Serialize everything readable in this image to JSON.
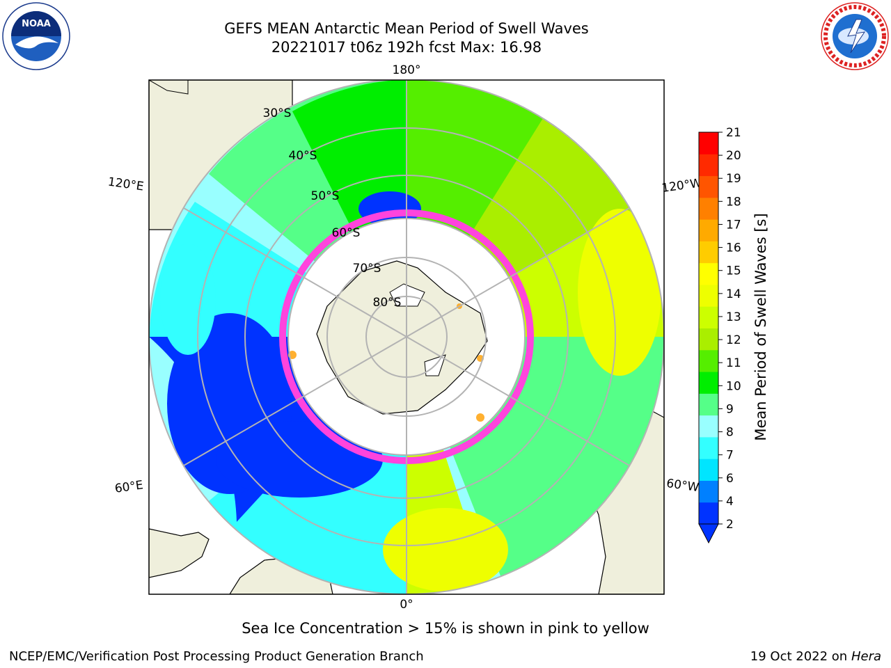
{
  "header": {
    "title_line1": "GEFS MEAN Antarctic Mean Period of Swell Waves",
    "title_line2": "20221017 t06z 192h fcst   Max: 16.98"
  },
  "logos": {
    "noaa": {
      "text": "NOAA"
    }
  },
  "map": {
    "projection": "south-polar-stereographic",
    "longitude_labels": [
      "180°",
      "120°E",
      "120°W",
      "60°E",
      "60°W",
      "0°"
    ],
    "latitude_labels": [
      "30°S",
      "40°S",
      "50°S",
      "60°S",
      "70°S",
      "80°S"
    ],
    "colors": {
      "land": "#efefdc",
      "ice_shelf": "#ffffff",
      "grid": "#b3b3b3",
      "sea_ice_edge": "#ff44dd",
      "sea_ice_inner": "#ffb030"
    },
    "summary": {
      "max_swell_period_s": 16.98
    }
  },
  "colorbar": {
    "label": "Mean Period of Swell Waves [s]",
    "ticks": [
      "2",
      "4",
      "6",
      "7",
      "8",
      "9",
      "10",
      "11",
      "12",
      "13",
      "14",
      "15",
      "16",
      "17",
      "18",
      "19",
      "20",
      "21"
    ],
    "colors": [
      "#0033ff",
      "#0080ff",
      "#00e5ff",
      "#33ffff",
      "#99ffff",
      "#55ff88",
      "#00ee00",
      "#55ee00",
      "#aaee00",
      "#ccff00",
      "#eeff00",
      "#ffff00",
      "#ffcc00",
      "#ffaa00",
      "#ff8000",
      "#ff5500",
      "#ff2a00",
      "#ff0000"
    ],
    "extend": "min"
  },
  "captions": {
    "sea_ice": "Sea Ice Concentration > 15% is shown in pink to yellow",
    "branch": "NCEP/EMC/Verification Post Processing Product Generation Branch",
    "date_prefix": "19 Oct 2022 on ",
    "host": "Hera"
  }
}
